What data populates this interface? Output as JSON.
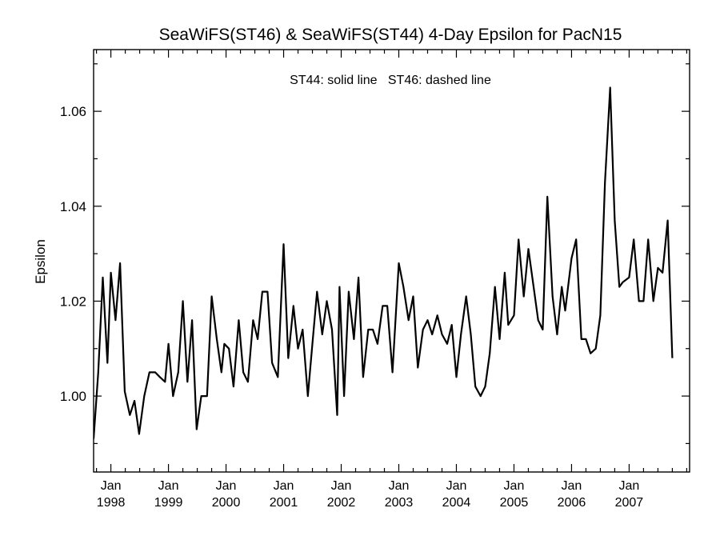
{
  "chart_data": {
    "type": "line",
    "title": "SeaWiFS(ST46) & SeaWiFS(ST44) 4-Day Epsilon for PacN15",
    "annotation": "ST44: solid line   ST46: dashed line",
    "ylabel": "Epsilon",
    "xlabel": "",
    "xlim": [
      1997.65,
      2008.0
    ],
    "ylim": [
      0.984,
      1.073
    ],
    "yticks": [
      {
        "value": 1.0,
        "label": "1.00"
      },
      {
        "value": 1.02,
        "label": "1.02"
      },
      {
        "value": 1.04,
        "label": "1.04"
      },
      {
        "value": 1.06,
        "label": "1.06"
      }
    ],
    "xticks": [
      {
        "value": 1997.95,
        "month": "Jan",
        "year": "1998"
      },
      {
        "value": 1998.95,
        "month": "Jan",
        "year": "1999"
      },
      {
        "value": 1999.95,
        "month": "Jan",
        "year": "2000"
      },
      {
        "value": 2000.95,
        "month": "Jan",
        "year": "2001"
      },
      {
        "value": 2001.95,
        "month": "Jan",
        "year": "2002"
      },
      {
        "value": 2002.95,
        "month": "Jan",
        "year": "2003"
      },
      {
        "value": 2003.95,
        "month": "Jan",
        "year": "2004"
      },
      {
        "value": 2004.95,
        "month": "Jan",
        "year": "2005"
      },
      {
        "value": 2005.95,
        "month": "Jan",
        "year": "2006"
      },
      {
        "value": 2006.95,
        "month": "Jan",
        "year": "2007"
      }
    ],
    "grid": false,
    "series": [
      {
        "style": "solid",
        "color": "#000000",
        "points": [
          [
            1997.65,
            0.991
          ],
          [
            1997.73,
            1.005
          ],
          [
            1997.81,
            1.025
          ],
          [
            1997.89,
            1.007
          ],
          [
            1997.95,
            1.026
          ],
          [
            1998.03,
            1.016
          ],
          [
            1998.11,
            1.028
          ],
          [
            1998.19,
            1.001
          ],
          [
            1998.28,
            0.996
          ],
          [
            1998.36,
            0.999
          ],
          [
            1998.44,
            0.992
          ],
          [
            1998.53,
            1.0
          ],
          [
            1998.62,
            1.005
          ],
          [
            1998.72,
            1.005
          ],
          [
            1998.8,
            1.004
          ],
          [
            1998.89,
            1.003
          ],
          [
            1998.95,
            1.011
          ],
          [
            1999.03,
            1.0
          ],
          [
            1999.12,
            1.005
          ],
          [
            1999.2,
            1.02
          ],
          [
            1999.28,
            1.003
          ],
          [
            1999.36,
            1.016
          ],
          [
            1999.44,
            0.993
          ],
          [
            1999.52,
            1.0
          ],
          [
            1999.62,
            1.0
          ],
          [
            1999.7,
            1.021
          ],
          [
            1999.79,
            1.012
          ],
          [
            1999.87,
            1.005
          ],
          [
            1999.92,
            1.011
          ],
          [
            2000.0,
            1.01
          ],
          [
            2000.08,
            1.002
          ],
          [
            2000.17,
            1.016
          ],
          [
            2000.25,
            1.005
          ],
          [
            2000.33,
            1.003
          ],
          [
            2000.42,
            1.016
          ],
          [
            2000.5,
            1.012
          ],
          [
            2000.58,
            1.022
          ],
          [
            2000.67,
            1.022
          ],
          [
            2000.75,
            1.007
          ],
          [
            2000.85,
            1.004
          ],
          [
            2000.95,
            1.032
          ],
          [
            2001.03,
            1.008
          ],
          [
            2001.12,
            1.019
          ],
          [
            2001.2,
            1.01
          ],
          [
            2001.28,
            1.014
          ],
          [
            2001.37,
            1.0
          ],
          [
            2001.45,
            1.011
          ],
          [
            2001.53,
            1.022
          ],
          [
            2001.62,
            1.013
          ],
          [
            2001.7,
            1.02
          ],
          [
            2001.79,
            1.014
          ],
          [
            2001.88,
            0.996
          ],
          [
            2001.92,
            1.023
          ],
          [
            2002.0,
            1.0
          ],
          [
            2002.08,
            1.022
          ],
          [
            2002.17,
            1.012
          ],
          [
            2002.25,
            1.025
          ],
          [
            2002.33,
            1.004
          ],
          [
            2002.42,
            1.014
          ],
          [
            2002.5,
            1.014
          ],
          [
            2002.58,
            1.011
          ],
          [
            2002.67,
            1.019
          ],
          [
            2002.75,
            1.019
          ],
          [
            2002.84,
            1.005
          ],
          [
            2002.95,
            1.028
          ],
          [
            2003.03,
            1.023
          ],
          [
            2003.12,
            1.016
          ],
          [
            2003.2,
            1.021
          ],
          [
            2003.28,
            1.006
          ],
          [
            2003.37,
            1.014
          ],
          [
            2003.45,
            1.016
          ],
          [
            2003.53,
            1.013
          ],
          [
            2003.62,
            1.017
          ],
          [
            2003.7,
            1.013
          ],
          [
            2003.79,
            1.011
          ],
          [
            2003.87,
            1.015
          ],
          [
            2003.95,
            1.004
          ],
          [
            2004.03,
            1.013
          ],
          [
            2004.12,
            1.021
          ],
          [
            2004.2,
            1.013
          ],
          [
            2004.28,
            1.002
          ],
          [
            2004.37,
            1.0
          ],
          [
            2004.45,
            1.002
          ],
          [
            2004.53,
            1.009
          ],
          [
            2004.62,
            1.023
          ],
          [
            2004.7,
            1.012
          ],
          [
            2004.79,
            1.026
          ],
          [
            2004.85,
            1.015
          ],
          [
            2004.95,
            1.017
          ],
          [
            2005.03,
            1.033
          ],
          [
            2005.12,
            1.021
          ],
          [
            2005.2,
            1.031
          ],
          [
            2005.28,
            1.024
          ],
          [
            2005.37,
            1.016
          ],
          [
            2005.45,
            1.014
          ],
          [
            2005.53,
            1.042
          ],
          [
            2005.62,
            1.021
          ],
          [
            2005.7,
            1.013
          ],
          [
            2005.78,
            1.023
          ],
          [
            2005.84,
            1.018
          ],
          [
            2005.95,
            1.029
          ],
          [
            2006.03,
            1.033
          ],
          [
            2006.12,
            1.012
          ],
          [
            2006.2,
            1.012
          ],
          [
            2006.28,
            1.009
          ],
          [
            2006.37,
            1.01
          ],
          [
            2006.45,
            1.017
          ],
          [
            2006.53,
            1.045
          ],
          [
            2006.62,
            1.065
          ],
          [
            2006.7,
            1.037
          ],
          [
            2006.78,
            1.023
          ],
          [
            2006.84,
            1.024
          ],
          [
            2006.95,
            1.025
          ],
          [
            2007.03,
            1.033
          ],
          [
            2007.12,
            1.02
          ],
          [
            2007.2,
            1.02
          ],
          [
            2007.28,
            1.033
          ],
          [
            2007.37,
            1.02
          ],
          [
            2007.45,
            1.027
          ],
          [
            2007.53,
            1.026
          ],
          [
            2007.62,
            1.037
          ],
          [
            2007.7,
            1.008
          ]
        ]
      }
    ]
  }
}
